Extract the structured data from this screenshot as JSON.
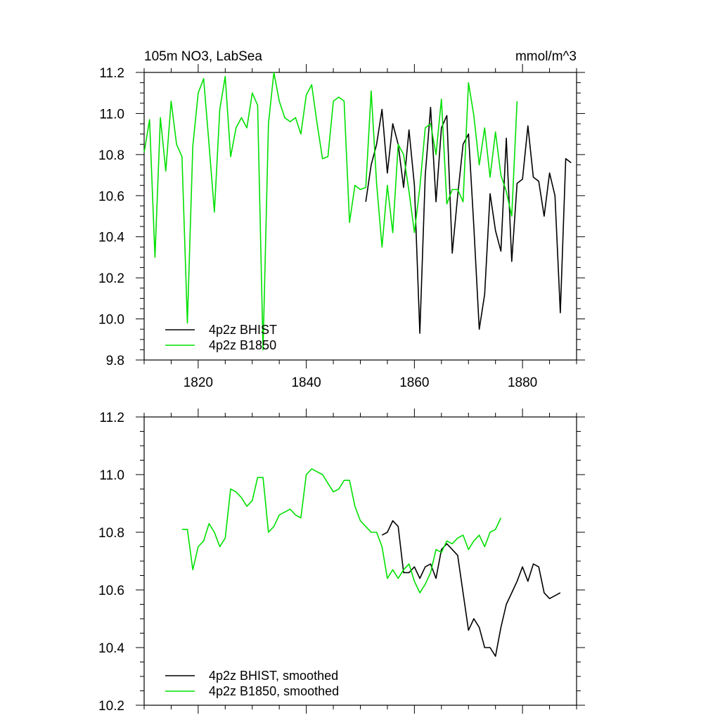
{
  "chart_data": [
    {
      "type": "line",
      "title": "105m NO3, LabSea",
      "units": "mmol/m^3",
      "xlabel": "",
      "ylabel": "",
      "xlim": [
        1810,
        1890
      ],
      "ylim": [
        9.8,
        11.2
      ],
      "xticks": [
        1820,
        1840,
        1860,
        1880
      ],
      "xtick_labels": [
        "1820",
        "1840",
        "1860",
        "1880"
      ],
      "yticks": [
        9.8,
        10.0,
        10.2,
        10.4,
        10.6,
        10.8,
        11.0,
        11.2
      ],
      "ytick_labels": [
        "9.8",
        "10.0",
        "10.2",
        "10.4",
        "10.6",
        "10.8",
        "11.0",
        "11.2"
      ],
      "grid": false,
      "legend_position": "bottom-left",
      "series": [
        {
          "name": "4p2z BHIST",
          "color": "#000000",
          "x": [
            1851,
            1852,
            1853,
            1854,
            1855,
            1856,
            1857,
            1858,
            1859,
            1860,
            1861,
            1862,
            1863,
            1864,
            1865,
            1866,
            1867,
            1868,
            1869,
            1870,
            1871,
            1872,
            1873,
            1874,
            1875,
            1876,
            1877,
            1878,
            1879,
            1880,
            1881,
            1882,
            1883,
            1884,
            1885,
            1886,
            1887,
            1888,
            1889
          ],
          "y": [
            10.57,
            10.75,
            10.85,
            11.02,
            10.71,
            10.95,
            10.85,
            10.64,
            10.92,
            10.65,
            9.93,
            10.7,
            11.03,
            10.57,
            10.93,
            10.99,
            10.32,
            10.6,
            10.85,
            10.9,
            10.45,
            9.95,
            10.12,
            10.61,
            10.43,
            10.33,
            10.88,
            10.28,
            10.66,
            10.68,
            10.94,
            10.69,
            10.67,
            10.5,
            10.71,
            10.6,
            10.03,
            10.78,
            10.76
          ]
        },
        {
          "name": "4p2z B1850",
          "color": "#00e000",
          "x": [
            1810,
            1811,
            1812,
            1813,
            1814,
            1815,
            1816,
            1817,
            1818,
            1819,
            1820,
            1821,
            1822,
            1823,
            1824,
            1825,
            1826,
            1827,
            1828,
            1829,
            1830,
            1831,
            1832,
            1833,
            1834,
            1835,
            1836,
            1837,
            1838,
            1839,
            1840,
            1841,
            1842,
            1843,
            1844,
            1845,
            1846,
            1847,
            1848,
            1849,
            1850,
            1851,
            1852,
            1853,
            1854,
            1855,
            1856,
            1857,
            1858,
            1859,
            1860,
            1861,
            1862,
            1863,
            1864,
            1865,
            1866,
            1867,
            1868,
            1869,
            1870,
            1871,
            1872,
            1873,
            1874,
            1875,
            1876,
            1877,
            1878,
            1879
          ],
          "y": [
            10.81,
            10.97,
            10.3,
            10.98,
            10.72,
            11.06,
            10.85,
            10.79,
            9.98,
            10.84,
            11.1,
            11.17,
            10.85,
            10.52,
            11.02,
            11.18,
            10.79,
            10.93,
            10.98,
            10.93,
            11.1,
            11.04,
            9.85,
            10.95,
            11.2,
            11.06,
            10.98,
            10.96,
            10.98,
            10.9,
            11.09,
            11.14,
            10.95,
            10.78,
            10.79,
            11.06,
            11.08,
            11.06,
            10.47,
            10.65,
            10.63,
            10.64,
            11.11,
            10.66,
            10.35,
            10.65,
            10.42,
            10.85,
            10.8,
            10.62,
            10.42,
            10.64,
            10.93,
            10.95,
            10.8,
            11.07,
            10.56,
            10.63,
            10.63,
            10.57,
            11.15,
            10.99,
            10.75,
            10.93,
            10.69,
            10.91,
            10.7,
            10.62,
            10.5,
            11.06
          ]
        }
      ]
    },
    {
      "type": "line",
      "title": "",
      "xlabel": "",
      "ylabel": "",
      "xlim": [
        1810,
        1890
      ],
      "ylim": [
        10.2,
        11.2
      ],
      "xticks": [
        1820,
        1840,
        1860,
        1880
      ],
      "xtick_labels": [],
      "yticks": [
        10.2,
        10.4,
        10.6,
        10.8,
        11.0,
        11.2
      ],
      "ytick_labels": [
        "10.2",
        "10.4",
        "10.6",
        "10.8",
        "11.0",
        "11.2"
      ],
      "grid": false,
      "legend_position": "bottom-left",
      "series": [
        {
          "name": "4p2z BHIST, smoothed",
          "color": "#000000",
          "x": [
            1854,
            1855,
            1856,
            1857,
            1858,
            1859,
            1860,
            1861,
            1862,
            1863,
            1864,
            1865,
            1866,
            1867,
            1868,
            1869,
            1870,
            1871,
            1872,
            1873,
            1874,
            1875,
            1876,
            1877,
            1878,
            1879,
            1880,
            1881,
            1882,
            1883,
            1884,
            1885,
            1886,
            1887
          ],
          "y": [
            10.79,
            10.8,
            10.84,
            10.82,
            10.66,
            10.66,
            10.68,
            10.64,
            10.68,
            10.69,
            10.64,
            10.74,
            10.76,
            10.74,
            10.72,
            10.59,
            10.46,
            10.5,
            10.47,
            10.4,
            10.4,
            10.37,
            10.47,
            10.55,
            10.59,
            10.63,
            10.68,
            10.63,
            10.69,
            10.68,
            10.59,
            10.57,
            10.58,
            10.59
          ]
        },
        {
          "name": "4p2z B1850, smoothed",
          "color": "#00e000",
          "x": [
            1817,
            1818,
            1819,
            1820,
            1821,
            1822,
            1823,
            1824,
            1825,
            1826,
            1827,
            1828,
            1829,
            1830,
            1831,
            1832,
            1833,
            1834,
            1835,
            1836,
            1837,
            1838,
            1839,
            1840,
            1841,
            1842,
            1843,
            1844,
            1845,
            1846,
            1847,
            1848,
            1849,
            1850,
            1851,
            1852,
            1853,
            1854,
            1855,
            1856,
            1857,
            1858,
            1859,
            1860,
            1861,
            1862,
            1863,
            1864,
            1865,
            1866,
            1867,
            1868,
            1869,
            1870,
            1871,
            1872,
            1873,
            1874,
            1875,
            1876
          ],
          "y": [
            10.81,
            10.81,
            10.67,
            10.75,
            10.77,
            10.83,
            10.8,
            10.75,
            10.78,
            10.95,
            10.94,
            10.92,
            10.89,
            10.91,
            10.99,
            10.99,
            10.8,
            10.82,
            10.86,
            10.87,
            10.88,
            10.86,
            10.85,
            11.0,
            11.02,
            11.01,
            11.0,
            10.97,
            10.94,
            10.95,
            10.98,
            10.98,
            10.89,
            10.84,
            10.82,
            10.8,
            10.8,
            10.75,
            10.64,
            10.67,
            10.64,
            10.67,
            10.69,
            10.63,
            10.59,
            10.62,
            10.66,
            10.74,
            10.73,
            10.77,
            10.76,
            10.78,
            10.79,
            10.74,
            10.77,
            10.79,
            10.75,
            10.8,
            10.81,
            10.85
          ]
        }
      ]
    }
  ]
}
